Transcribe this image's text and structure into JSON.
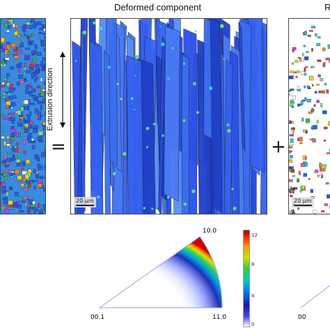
{
  "titles": {
    "deformed": "Deformed component",
    "right_partial": "R"
  },
  "axis_label": "Extrusion direction",
  "scalebars": {
    "middle": "20 μm",
    "right": "20 μm"
  },
  "operators": {
    "equals": "=",
    "plus": "+"
  },
  "ipf": {
    "corner_top": "10.0",
    "corner_left": "00.1",
    "corner_right": "11.0",
    "right_partial_label": "00"
  },
  "colorbar": {
    "ticks": [
      "12",
      "8",
      "4",
      "0"
    ],
    "gradient_colors": [
      "#ffffff",
      "#4a4aff",
      "#1a1aa0",
      "#0070ff",
      "#00c8c8",
      "#30d030",
      "#d0e000",
      "#ff9000",
      "#ff2000",
      "#a00000"
    ]
  },
  "colors": {
    "map_blue": "#2a4fe8",
    "map_bg": "#ffffff",
    "ipf_outline": "#8fa6d8"
  }
}
